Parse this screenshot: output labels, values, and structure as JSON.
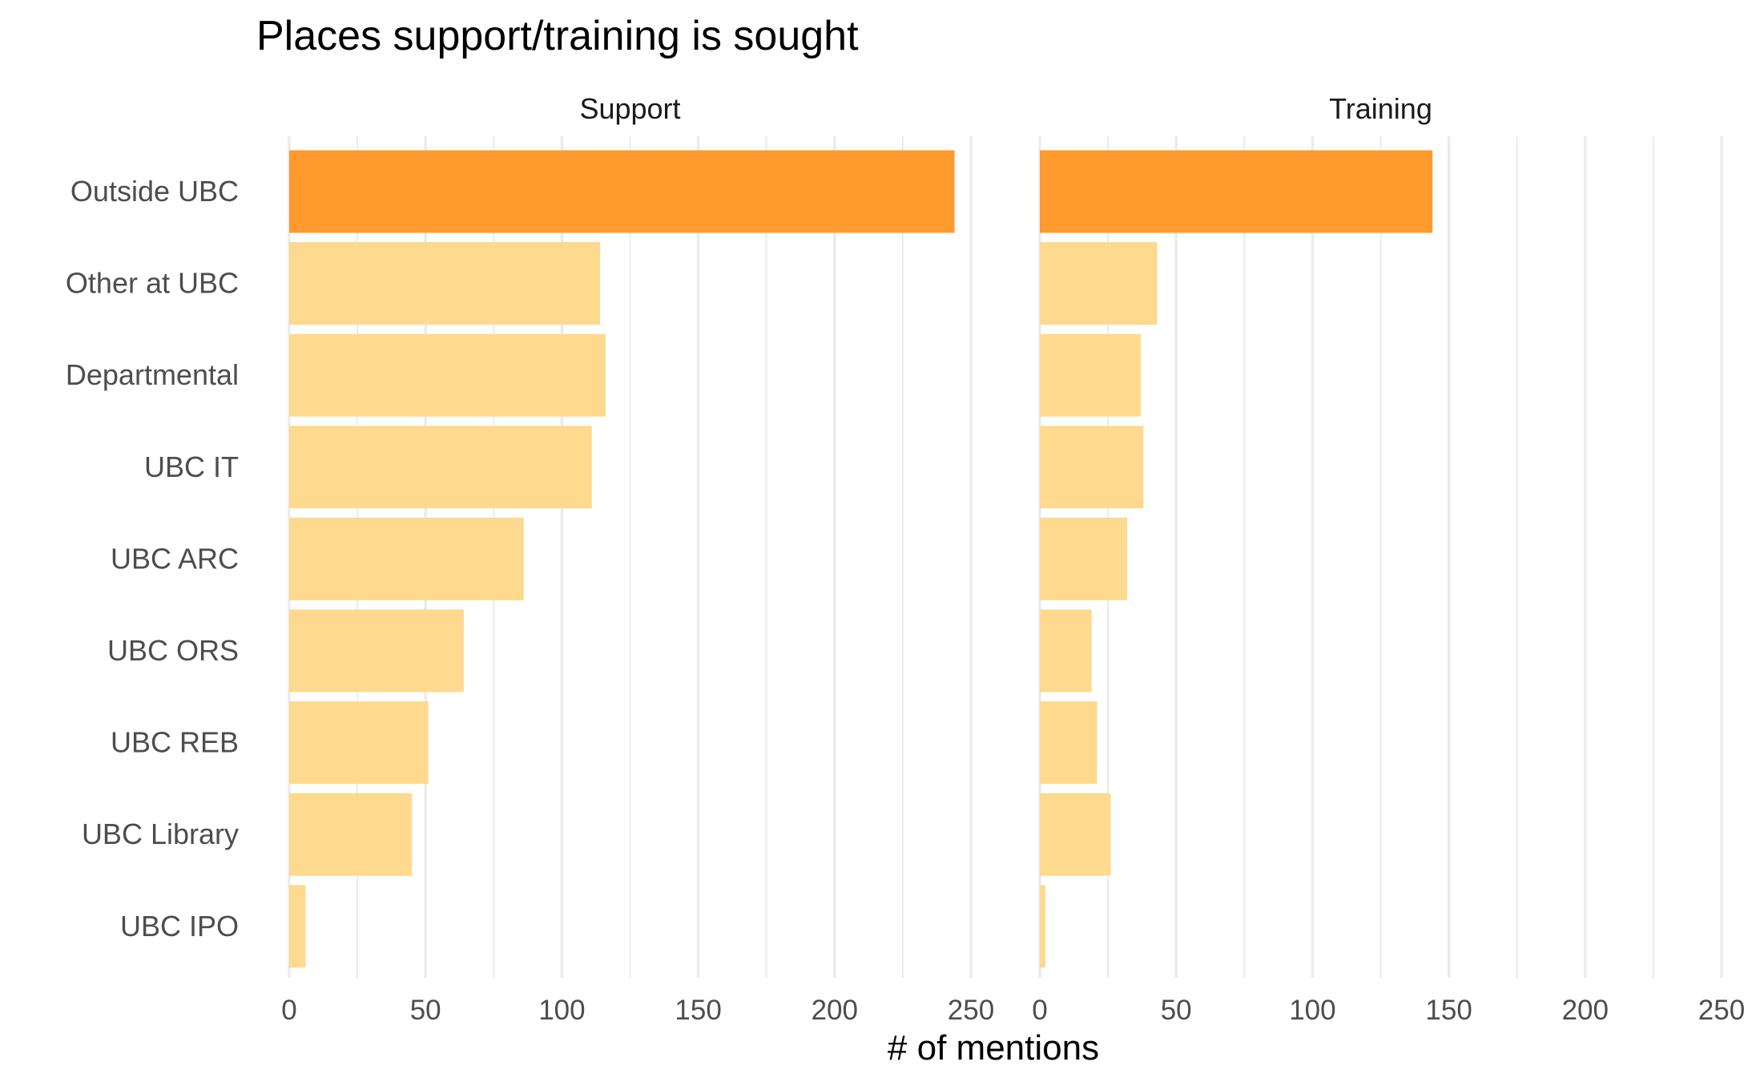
{
  "chart_data": {
    "type": "bar",
    "orientation": "horizontal",
    "title": "Places support/training is sought",
    "xlabel": "# of mentions",
    "ylabel": "",
    "xlim": [
      0,
      250
    ],
    "x_ticks": [
      0,
      50,
      100,
      150,
      200,
      250
    ],
    "grid": true,
    "legend": "none",
    "categories": [
      "Outside UBC",
      "Other at UBC",
      "Departmental",
      "UBC IT",
      "UBC ARC",
      "UBC ORS",
      "UBC REB",
      "UBC Library",
      "UBC IPO"
    ],
    "facets": [
      {
        "name": "Support",
        "values": [
          244,
          114,
          116,
          111,
          86,
          64,
          51,
          45,
          6
        ]
      },
      {
        "name": "Training",
        "values": [
          144,
          43,
          37,
          38,
          32,
          19,
          21,
          26,
          2
        ]
      }
    ],
    "highlight_category": "Outside UBC",
    "colors": {
      "highlight": "#FF9A2E",
      "default": "#FED98E",
      "grid": "#EBEBEB"
    }
  }
}
